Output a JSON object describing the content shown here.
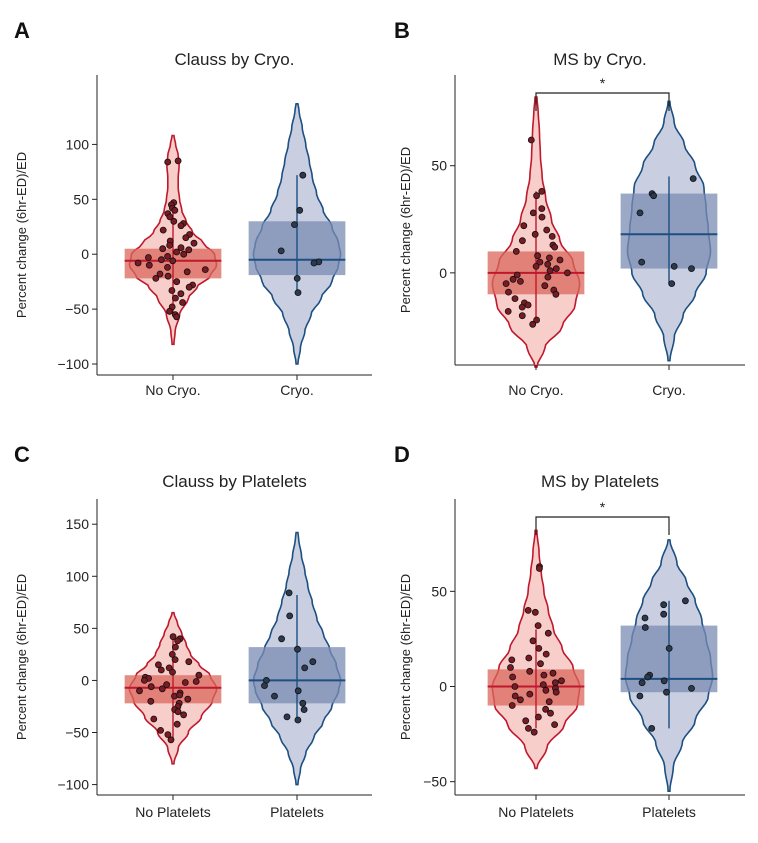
{
  "colors": {
    "red": "#c0182c",
    "red_fill": "#f6c9c4",
    "red_box": "#d9675c",
    "blue": "#1c4f82",
    "blue_fill": "#c3cadd",
    "blue_box": "#7a8bb3",
    "point": "#7a1a24"
  },
  "chart_data": [
    {
      "type": "violin",
      "panel": "A",
      "title": "Clauss by Cryo.",
      "ylabel": "Percent change (6hr-ED)/ED",
      "ylim": [
        -110,
        145
      ],
      "yticks": [
        -100,
        -50,
        0,
        50,
        100
      ],
      "significance": "",
      "groups": [
        {
          "name": "No Cryo.",
          "color": "red",
          "range": [
            -82,
            108
          ],
          "density": [
            [
              -82,
              0.02
            ],
            [
              -70,
              0.05
            ],
            [
              -55,
              0.15
            ],
            [
              -40,
              0.35
            ],
            [
              -30,
              0.55
            ],
            [
              -20,
              0.85
            ],
            [
              -10,
              1.0
            ],
            [
              0,
              0.95
            ],
            [
              10,
              0.7
            ],
            [
              20,
              0.45
            ],
            [
              30,
              0.3
            ],
            [
              40,
              0.2
            ],
            [
              50,
              0.15
            ],
            [
              60,
              0.12
            ],
            [
              70,
              0.12
            ],
            [
              80,
              0.14
            ],
            [
              90,
              0.12
            ],
            [
              100,
              0.06
            ],
            [
              108,
              0.02
            ]
          ],
          "q1": -22,
          "median": -6,
          "q3": 5,
          "whisker": [
            -55,
            45
          ],
          "points": [
            85,
            84,
            47,
            45,
            42,
            40,
            37,
            34,
            30,
            28,
            26,
            22,
            18,
            15,
            12,
            10,
            8,
            6,
            5,
            4,
            2,
            0,
            -2,
            -3,
            -5,
            -6,
            -8,
            -10,
            -12,
            -14,
            -16,
            -18,
            -20,
            -22,
            -25,
            -28,
            -30,
            -33,
            -36,
            -40,
            -44,
            -48,
            -52,
            -55,
            -57
          ]
        },
        {
          "name": "Cryo.",
          "color": "blue",
          "range": [
            -100,
            137
          ],
          "density": [
            [
              -100,
              0.02
            ],
            [
              -85,
              0.08
            ],
            [
              -70,
              0.18
            ],
            [
              -55,
              0.32
            ],
            [
              -40,
              0.55
            ],
            [
              -25,
              0.8
            ],
            [
              -10,
              0.95
            ],
            [
              0,
              1.0
            ],
            [
              10,
              0.95
            ],
            [
              25,
              0.8
            ],
            [
              40,
              0.6
            ],
            [
              55,
              0.45
            ],
            [
              70,
              0.35
            ],
            [
              85,
              0.28
            ],
            [
              100,
              0.2
            ],
            [
              115,
              0.12
            ],
            [
              130,
              0.05
            ],
            [
              137,
              0.02
            ]
          ],
          "q1": -19,
          "median": -5,
          "q3": 30,
          "whisker": [
            -35,
            72
          ],
          "points": [
            72,
            40,
            27,
            3,
            -7,
            -8,
            -22,
            -35
          ]
        }
      ]
    },
    {
      "type": "violin",
      "panel": "B",
      "title": "MS by Cryo.",
      "ylabel": "Percent change (6hr-ED)/ED",
      "ylim": [
        -43,
        83
      ],
      "yticks": [
        0,
        50
      ],
      "significance": "*",
      "groups": [
        {
          "name": "No Cryo.",
          "color": "red",
          "range": [
            -44,
            82
          ],
          "density": [
            [
              -44,
              0.02
            ],
            [
              -35,
              0.2
            ],
            [
              -25,
              0.6
            ],
            [
              -15,
              0.9
            ],
            [
              -5,
              1.0
            ],
            [
              5,
              0.85
            ],
            [
              15,
              0.55
            ],
            [
              25,
              0.35
            ],
            [
              35,
              0.22
            ],
            [
              45,
              0.14
            ],
            [
              55,
              0.1
            ],
            [
              65,
              0.08
            ],
            [
              75,
              0.05
            ],
            [
              82,
              0.02
            ]
          ],
          "q1": -10,
          "median": 0,
          "q3": 10,
          "whisker": [
            -22,
            38
          ],
          "points": [
            62,
            38,
            36,
            30,
            28,
            26,
            22,
            20,
            17,
            15,
            13,
            10,
            8,
            6,
            5,
            4,
            2,
            1,
            0,
            -1,
            -2,
            -3,
            -5,
            -6,
            -8,
            -10,
            -12,
            -14,
            -16,
            -18,
            -20,
            -22,
            -24,
            3,
            7,
            -4,
            12,
            -9,
            18,
            -15
          ]
        },
        {
          "name": "Cryo.",
          "color": "blue",
          "range": [
            -41,
            80
          ],
          "density": [
            [
              -41,
              0.02
            ],
            [
              -30,
              0.12
            ],
            [
              -20,
              0.32
            ],
            [
              -10,
              0.6
            ],
            [
              0,
              0.85
            ],
            [
              10,
              0.95
            ],
            [
              20,
              0.9
            ],
            [
              30,
              0.85
            ],
            [
              40,
              0.8
            ],
            [
              50,
              0.6
            ],
            [
              60,
              0.35
            ],
            [
              70,
              0.12
            ],
            [
              80,
              0.02
            ]
          ],
          "q1": 2,
          "median": 18,
          "q3": 37,
          "whisker": [
            -5,
            45
          ],
          "points": [
            44,
            37,
            36,
            28,
            5,
            3,
            2,
            -5
          ]
        }
      ]
    },
    {
      "type": "violin",
      "panel": "C",
      "title": "Clauss by Platelets",
      "ylabel": "Percent change (6hr-ED)/ED",
      "ylim": [
        -110,
        155
      ],
      "yticks": [
        -100,
        -50,
        0,
        50,
        100,
        150
      ],
      "significance": "",
      "groups": [
        {
          "name": "No Platelets",
          "color": "red",
          "range": [
            -80,
            65
          ],
          "density": [
            [
              -80,
              0.02
            ],
            [
              -65,
              0.12
            ],
            [
              -50,
              0.35
            ],
            [
              -35,
              0.65
            ],
            [
              -20,
              0.9
            ],
            [
              -8,
              1.0
            ],
            [
              5,
              0.85
            ],
            [
              15,
              0.6
            ],
            [
              25,
              0.4
            ],
            [
              35,
              0.3
            ],
            [
              45,
              0.2
            ],
            [
              55,
              0.1
            ],
            [
              65,
              0.02
            ]
          ],
          "q1": -22,
          "median": -7,
          "q3": 5,
          "whisker": [
            -55,
            42
          ],
          "points": [
            42,
            40,
            38,
            32,
            25,
            20,
            15,
            12,
            10,
            8,
            5,
            3,
            2,
            0,
            -2,
            -4,
            -6,
            -8,
            -10,
            -12,
            -15,
            -18,
            -20,
            -22,
            -25,
            -28,
            -30,
            -33,
            -37,
            -42,
            -48,
            -52,
            -57,
            -1,
            -14,
            18
          ]
        },
        {
          "name": "Platelets",
          "color": "blue",
          "range": [
            -100,
            142
          ],
          "density": [
            [
              -100,
              0.02
            ],
            [
              -85,
              0.08
            ],
            [
              -70,
              0.2
            ],
            [
              -55,
              0.38
            ],
            [
              -40,
              0.6
            ],
            [
              -25,
              0.8
            ],
            [
              -10,
              0.95
            ],
            [
              0,
              1.0
            ],
            [
              15,
              0.9
            ],
            [
              30,
              0.75
            ],
            [
              45,
              0.6
            ],
            [
              60,
              0.45
            ],
            [
              75,
              0.35
            ],
            [
              90,
              0.25
            ],
            [
              105,
              0.18
            ],
            [
              120,
              0.1
            ],
            [
              135,
              0.04
            ],
            [
              142,
              0.02
            ]
          ],
          "q1": -22,
          "median": 0,
          "q3": 32,
          "whisker": [
            -38,
            82
          ],
          "points": [
            84,
            62,
            40,
            30,
            18,
            12,
            0,
            -5,
            -10,
            -15,
            -22,
            -28,
            -35,
            -38
          ]
        }
      ]
    },
    {
      "type": "violin",
      "panel": "D",
      "title": "MS by Platelets",
      "ylabel": "Percent change (6hr-ED)/ED",
      "ylim": [
        -57,
        88
      ],
      "yticks": [
        -50,
        0,
        50
      ],
      "significance": "*",
      "groups": [
        {
          "name": "No Platelets",
          "color": "red",
          "range": [
            -43,
            82
          ],
          "density": [
            [
              -43,
              0.02
            ],
            [
              -32,
              0.25
            ],
            [
              -20,
              0.65
            ],
            [
              -10,
              0.95
            ],
            [
              0,
              1.0
            ],
            [
              10,
              0.85
            ],
            [
              20,
              0.6
            ],
            [
              30,
              0.4
            ],
            [
              40,
              0.28
            ],
            [
              50,
              0.18
            ],
            [
              60,
              0.12
            ],
            [
              70,
              0.07
            ],
            [
              82,
              0.02
            ]
          ],
          "q1": -10,
          "median": 0,
          "q3": 9,
          "whisker": [
            -22,
            30
          ],
          "points": [
            63,
            62,
            40,
            39,
            32,
            28,
            24,
            20,
            17,
            15,
            12,
            10,
            8,
            6,
            5,
            3,
            2,
            0,
            -1,
            -2,
            -4,
            -5,
            -7,
            -8,
            -10,
            -12,
            -14,
            -16,
            -18,
            -20,
            -22,
            -24,
            1,
            7,
            -3,
            14
          ]
        },
        {
          "name": "Platelets",
          "color": "blue",
          "range": [
            -55,
            77
          ],
          "density": [
            [
              -55,
              0.02
            ],
            [
              -42,
              0.1
            ],
            [
              -30,
              0.3
            ],
            [
              -18,
              0.6
            ],
            [
              -5,
              0.9
            ],
            [
              5,
              1.0
            ],
            [
              15,
              0.95
            ],
            [
              25,
              0.85
            ],
            [
              35,
              0.75
            ],
            [
              45,
              0.6
            ],
            [
              55,
              0.4
            ],
            [
              65,
              0.18
            ],
            [
              77,
              0.02
            ]
          ],
          "q1": -3,
          "median": 4,
          "q3": 32,
          "whisker": [
            -22,
            45
          ],
          "points": [
            45,
            43,
            38,
            36,
            31,
            20,
            6,
            5,
            3,
            2,
            -1,
            -3,
            -5,
            -22
          ]
        }
      ]
    }
  ]
}
